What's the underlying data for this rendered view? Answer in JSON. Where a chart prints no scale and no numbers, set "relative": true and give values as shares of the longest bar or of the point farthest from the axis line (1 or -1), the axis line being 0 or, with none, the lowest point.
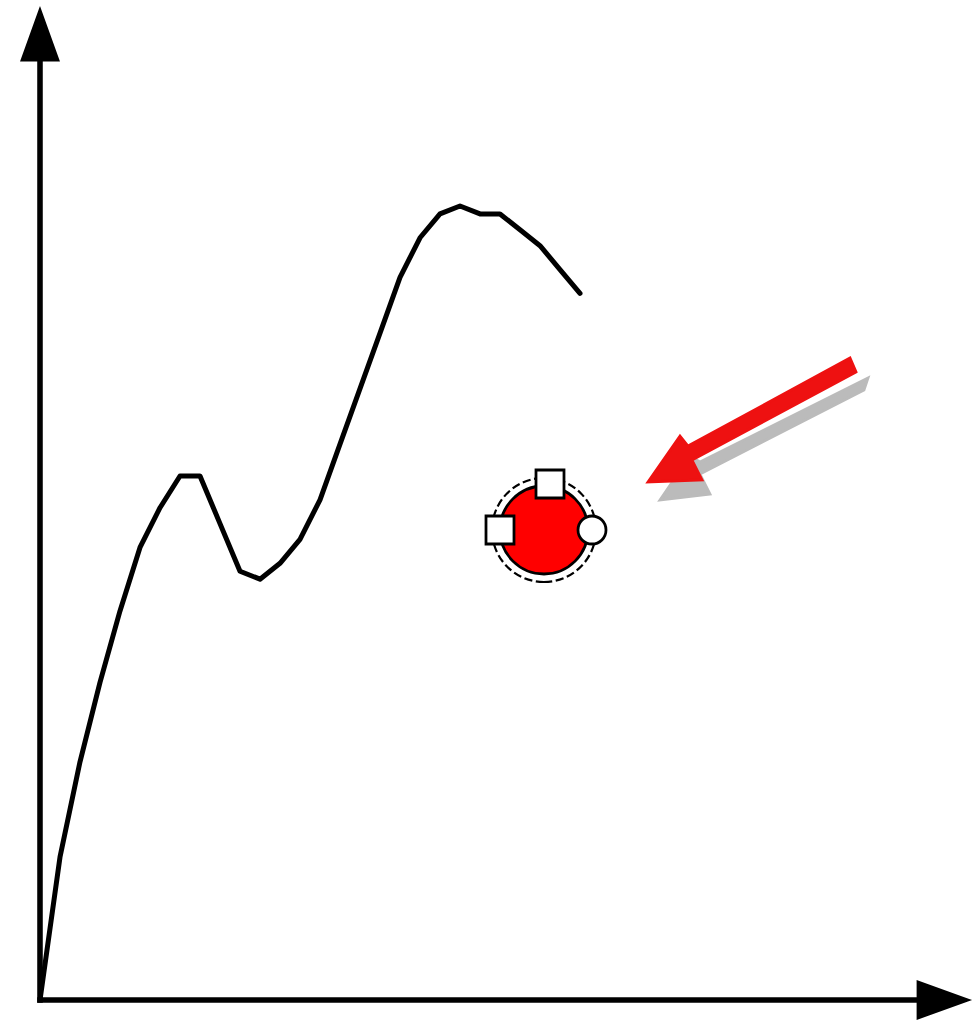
{
  "chart_data": {
    "type": "line",
    "relative": true,
    "color": "#000000",
    "marker": "none",
    "line_style": "solid",
    "grid": false,
    "categories": [
      null,
      null,
      null,
      null,
      null,
      null,
      null,
      null,
      null,
      null,
      null,
      null,
      null,
      null,
      null,
      null,
      null,
      null,
      null,
      null,
      null,
      null,
      null,
      null,
      null,
      null,
      null,
      null
    ],
    "values": [
      0,
      0.18,
      0.3,
      0.4,
      0.49,
      0.57,
      0.62,
      0.66,
      0.66,
      0.6,
      0.54,
      0.53,
      0.55,
      0.58,
      0.63,
      0.7,
      0.77,
      0.84,
      0.91,
      0.96,
      0.99,
      1.0,
      0.99,
      0.99,
      0.97,
      0.95,
      0.92,
      0.89
    ]
  }
}
